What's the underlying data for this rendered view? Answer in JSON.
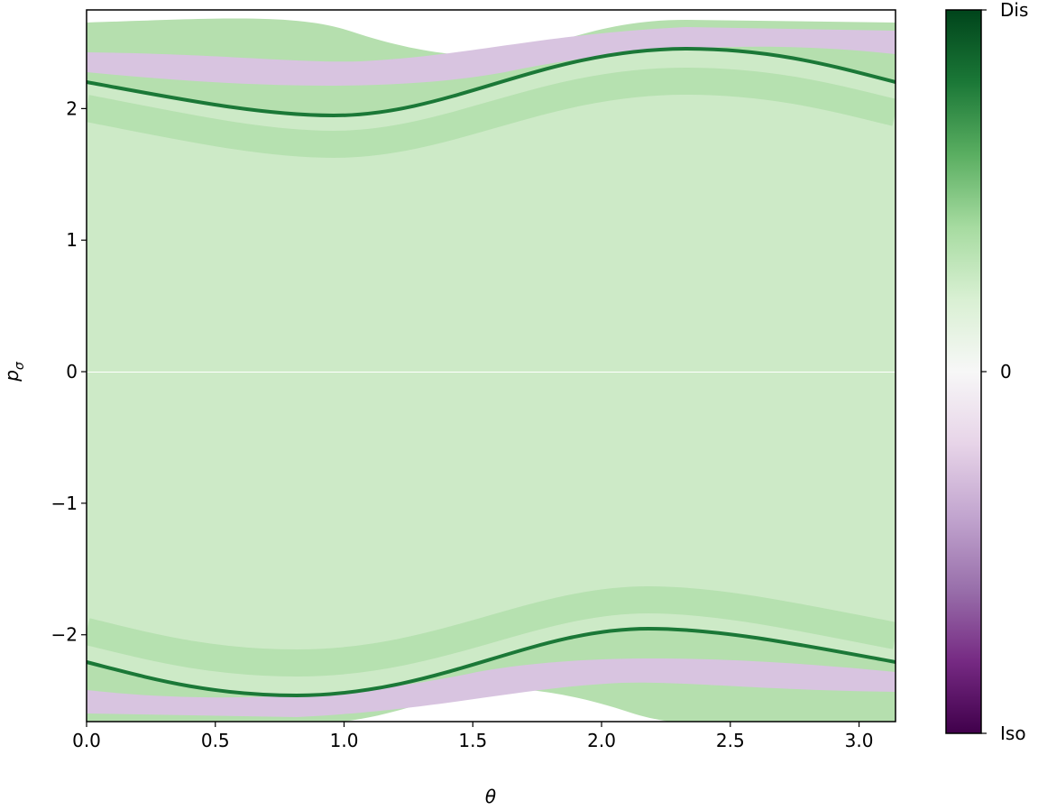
{
  "chart_data": {
    "type": "contour",
    "xlabel": "θ",
    "ylabel": "p",
    "ylabel_subscript": "σ",
    "xlim": [
      0,
      3.1416
    ],
    "ylim": [
      -2.66,
      2.75
    ],
    "xticks": [
      {
        "value": 0,
        "label": "0.0"
      },
      0.5,
      {
        "value": 1,
        "label": "1.0"
      },
      1.5,
      {
        "value": 2,
        "label": "2.0"
      },
      2.5,
      {
        "value": 3,
        "label": "3.0"
      }
    ],
    "yticks": [
      {
        "value": -2,
        "label": "−2"
      },
      {
        "value": -1,
        "label": "−1"
      },
      0,
      1,
      2
    ],
    "colormap": "PRGn",
    "colorbar": {
      "lim": [
        -1,
        1
      ],
      "ticks": [
        {
          "value": -1,
          "label": "Iso"
        },
        0,
        {
          "value": 1,
          "label": "Dis"
        }
      ]
    }
  }
}
